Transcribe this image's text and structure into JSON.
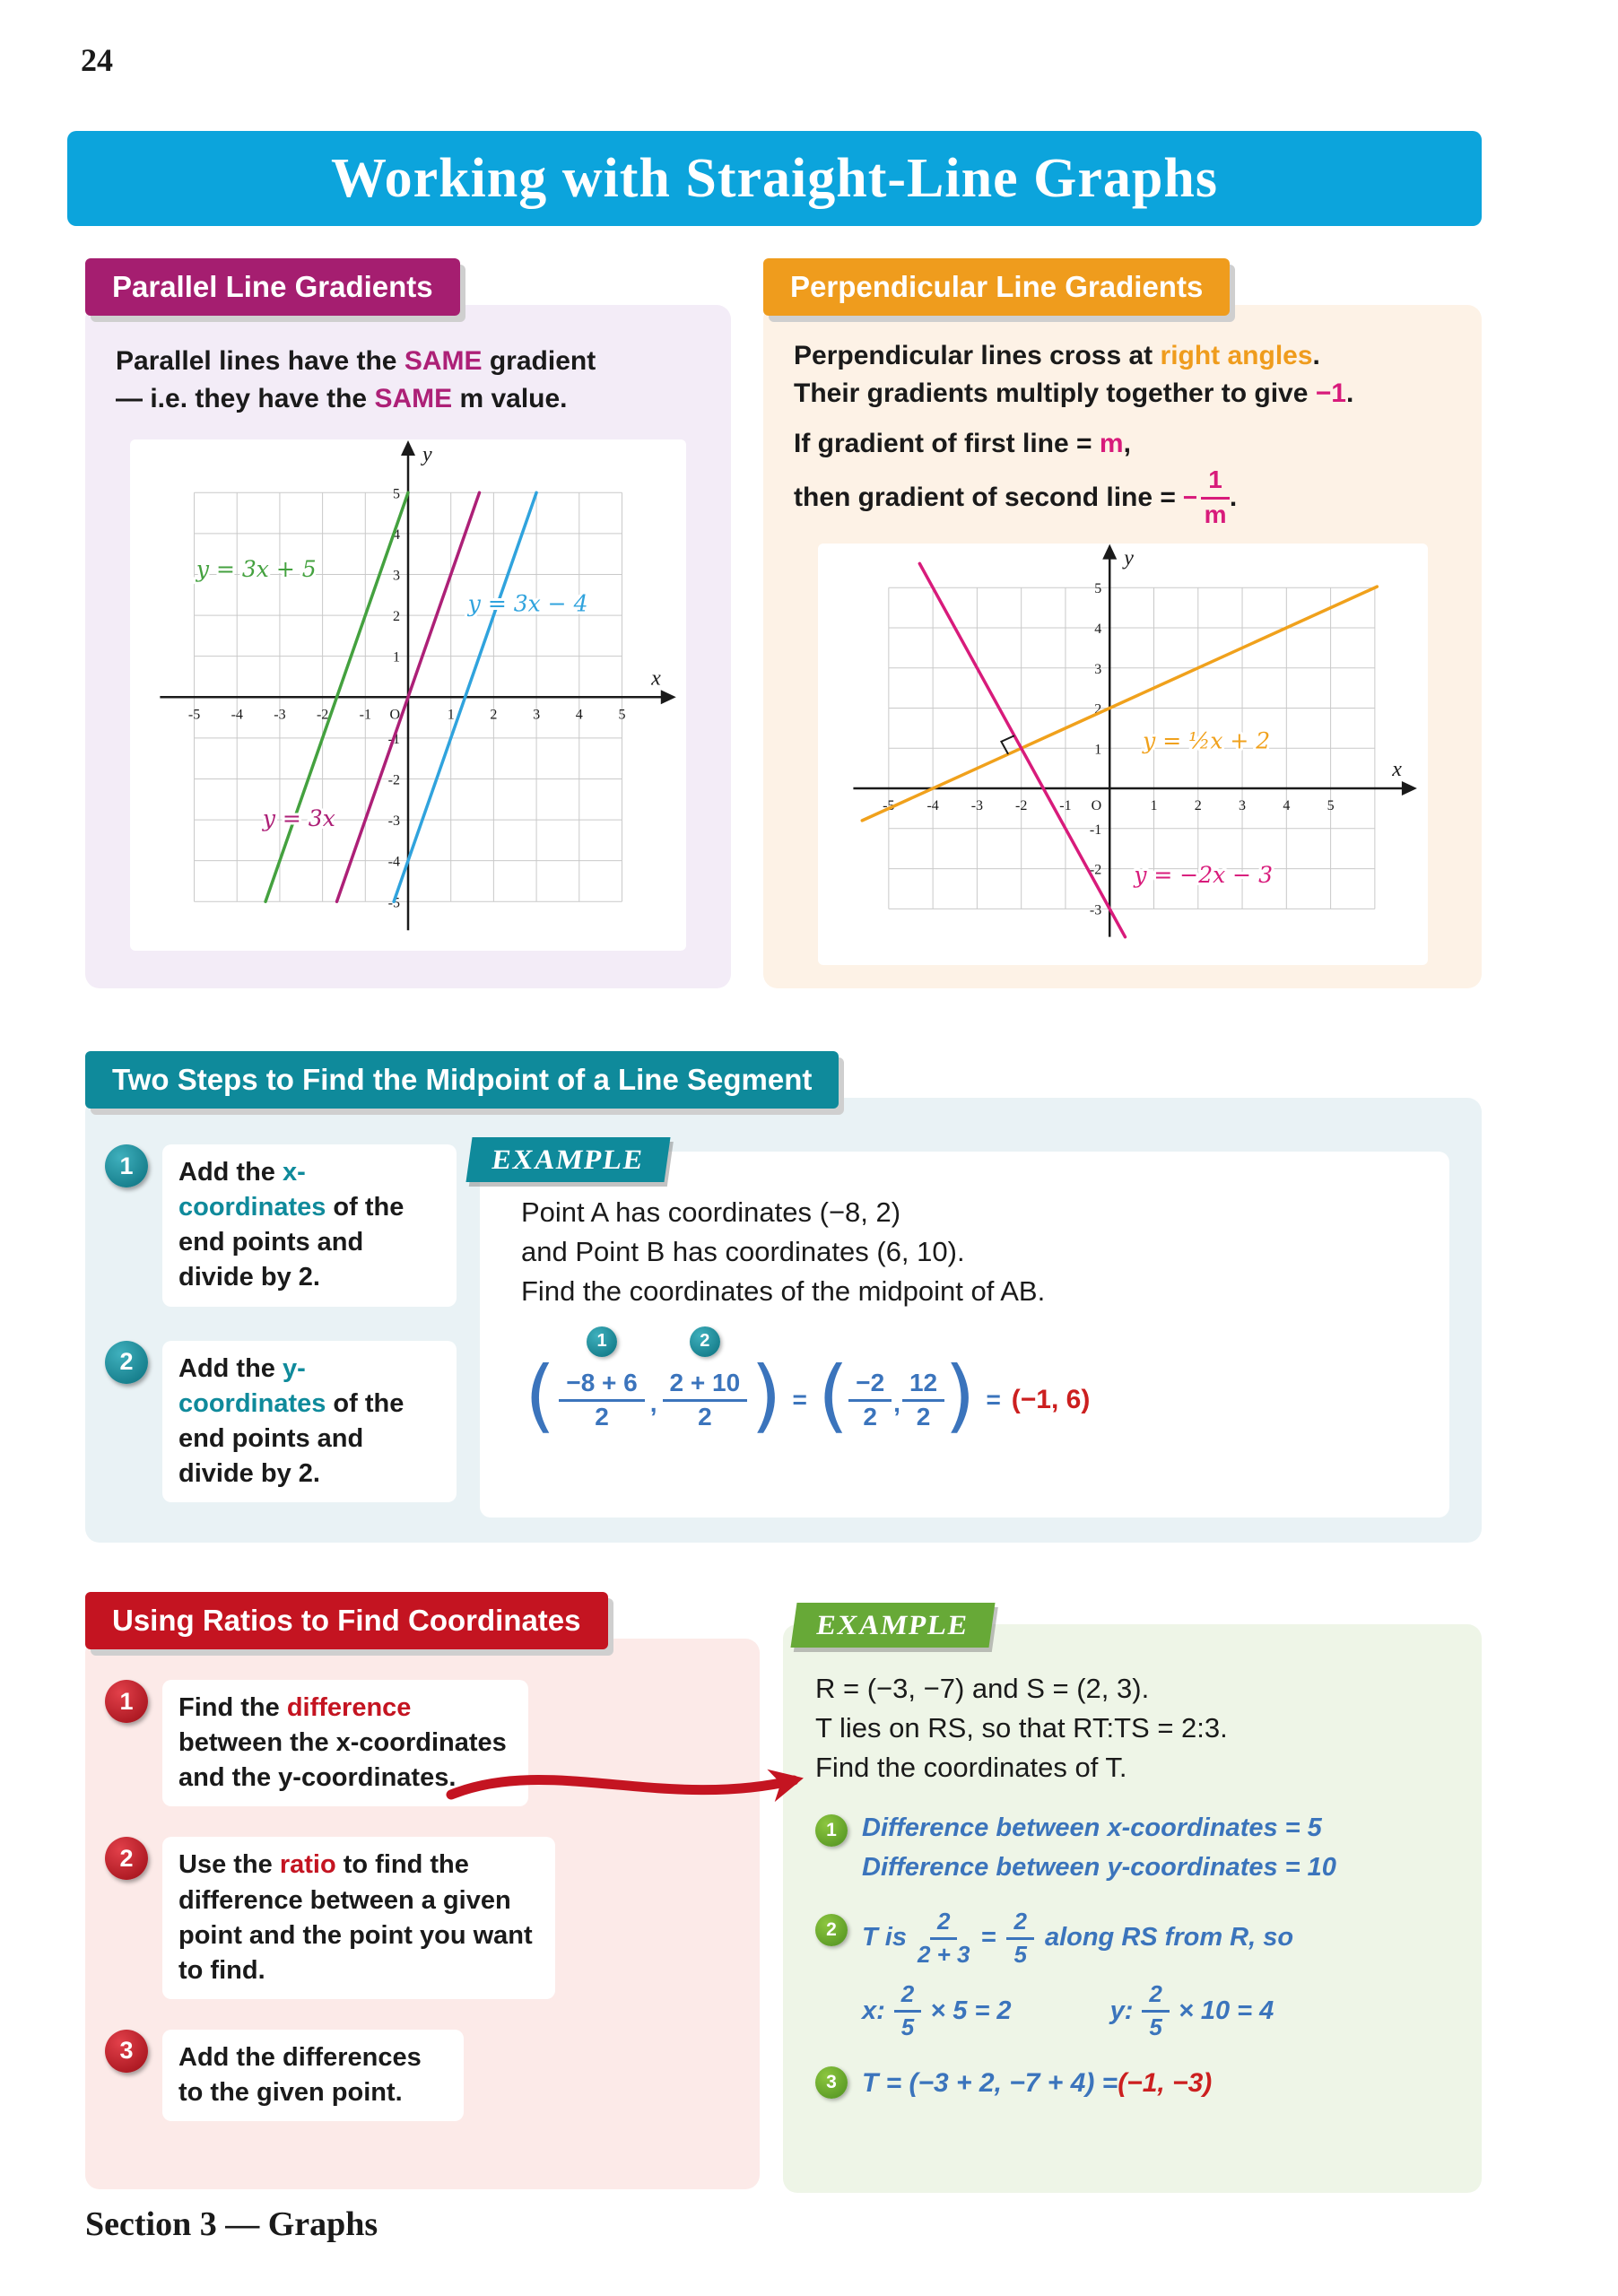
{
  "page": {
    "number": "24",
    "footer": "Section 3 — Graphs"
  },
  "title": "Working with Straight-Line Graphs",
  "colors": {
    "banner": "#0ca4dc",
    "magenta": "#a51e70",
    "orange": "#ef9c1d",
    "pink": "#d81b7b",
    "teal": "#0f8a9b",
    "red": "#c41421",
    "green": "#67a937",
    "math_blue": "#3b74bc",
    "result_red": "#cc1f1f"
  },
  "parallel": {
    "header": "Parallel Line Gradients",
    "line1": [
      {
        "t": "Parallel lines have the "
      },
      {
        "t": "SAME",
        "c": "magenta"
      },
      {
        "t": " gradient"
      }
    ],
    "line2": [
      {
        "t": "— i.e. they have the "
      },
      {
        "t": "SAME",
        "c": "magenta"
      },
      {
        "t": " m value."
      }
    ]
  },
  "perpendicular": {
    "header": "Perpendicular Line Gradients",
    "line1": [
      {
        "t": "Perpendicular lines cross at "
      },
      {
        "t": "right angles",
        "c": "orange"
      },
      {
        "t": "."
      }
    ],
    "line2": [
      {
        "t": "Their gradients multiply together to give "
      },
      {
        "t": "−1",
        "c": "pink"
      },
      {
        "t": "."
      }
    ],
    "line3": [
      {
        "t": "If gradient of first line = "
      },
      {
        "t": "m",
        "c": "pink"
      },
      {
        "t": ","
      }
    ],
    "line4_prefix": "then gradient of second line =",
    "fraction": {
      "sign": "−",
      "num": "1",
      "den": "m"
    },
    "line4_suffix": "."
  },
  "midpoint": {
    "header": "Two Steps to Find the Midpoint of a Line Segment",
    "steps": [
      {
        "num": "1",
        "segs": [
          {
            "t": "Add the "
          },
          {
            "t": "x-coordinates",
            "c": "teal"
          },
          {
            "t": " of the end points and divide by 2."
          }
        ]
      },
      {
        "num": "2",
        "segs": [
          {
            "t": "Add the "
          },
          {
            "t": "y-coordinates",
            "c": "teal"
          },
          {
            "t": " of the end points and divide by 2."
          }
        ]
      }
    ],
    "example": {
      "badge": "EXAMPLE",
      "lines": [
        "Point A has coordinates (−8, 2)",
        "and Point B has coordinates (6, 10).",
        "Find the coordinates of the midpoint of AB."
      ],
      "formula": {
        "circ1": "1",
        "circ2": "2",
        "open": "(",
        "f1": {
          "num": "−8 + 6",
          "den": "2"
        },
        "comma1": ",",
        "f2": {
          "num": "2 + 10",
          "den": "2"
        },
        "close": ")",
        "eq1": "=",
        "open2": "(",
        "f3": {
          "num": "−2",
          "den": "2"
        },
        "comma2": ",",
        "f4": {
          "num": "12",
          "den": "2"
        },
        "close2": ")",
        "eq2": "=",
        "result": "(−1, 6)"
      }
    }
  },
  "ratios": {
    "header": "Using Ratios to Find Coordinates",
    "steps": [
      {
        "num": "1",
        "segs": [
          {
            "t": "Find the "
          },
          {
            "t": "difference",
            "c": "red"
          },
          {
            "t": " between the x-coordinates and the y-coordinates."
          }
        ]
      },
      {
        "num": "2",
        "segs": [
          {
            "t": "Use the "
          },
          {
            "t": "ratio",
            "c": "red"
          },
          {
            "t": " to find the difference between a given point and the point you want to find."
          }
        ]
      },
      {
        "num": "3",
        "segs": [
          {
            "t": "Add the differences to the given point."
          }
        ]
      }
    ],
    "example": {
      "badge": "EXAMPLE",
      "intro": [
        "R = (−3, −7) and S = (2, 3).",
        "T lies on RS, so that RT:TS = 2:3.",
        "Find the coordinates of T."
      ],
      "s1": {
        "num": "1",
        "line1": "Difference between x-coordinates = 5",
        "line2": "Difference between y-coordinates = 10"
      },
      "s2": {
        "num": "2",
        "pre": "T is",
        "f1": {
          "num": "2",
          "den": "2 + 3"
        },
        "eq": "=",
        "f2": {
          "num": "2",
          "den": "5"
        },
        "post": "along RS from R, so",
        "x_label": "x:",
        "xf": {
          "num": "2",
          "den": "5"
        },
        "x_rest": "× 5 = 2",
        "y_label": "y:",
        "yf": {
          "num": "2",
          "den": "5"
        },
        "y_rest": "× 10 = 4"
      },
      "s3": {
        "num": "3",
        "pre": "T = (−3 + 2, −7 + 4) = ",
        "result": "(−1, −3)"
      }
    }
  },
  "chart_data": [
    {
      "type": "line",
      "title": "Parallel lines all with gradient 3",
      "xlabel": "x",
      "ylabel": "y",
      "origin_label": "O",
      "xlim": [
        -6.5,
        6.5
      ],
      "ylim": [
        -6.2,
        6.3
      ],
      "grid_x": [
        -5,
        5
      ],
      "grid_y": [
        -5,
        5
      ],
      "grid": true,
      "axis_x": [
        -5.8,
        5.95
      ],
      "axis_y": [
        -5.7,
        5.95
      ],
      "xticks": [
        -5,
        -4,
        -3,
        -2,
        -1,
        1,
        2,
        3,
        4,
        5
      ],
      "yticks": [
        -5,
        -4,
        -3,
        -2,
        -1,
        1,
        2,
        3,
        4,
        5
      ],
      "series": [
        {
          "name": "y = 3x + 5",
          "slope": 3,
          "intercept": 5,
          "color": "#44a13f",
          "points": [
            [
              -3.3333,
              -5
            ],
            [
              0,
              5
            ]
          ]
        },
        {
          "name": "y = 3x − 4",
          "slope": 3,
          "intercept": -4,
          "color": "#30a3dd",
          "points": [
            [
              -0.3333,
              -5
            ],
            [
              3,
              5
            ]
          ]
        },
        {
          "name": "y = 3x",
          "slope": 3,
          "intercept": 0,
          "color": "#ad2077",
          "points": [
            [
              -1.6667,
              -5
            ],
            [
              1.6667,
              5
            ]
          ]
        }
      ],
      "labels": [
        {
          "text": "y = 3x + 5",
          "x": -4.95,
          "y": 2.95,
          "color": "#44a13f"
        },
        {
          "text": "y = 3x − 4",
          "x": 1.4,
          "y": 2.1,
          "color": "#30a3dd"
        },
        {
          "text": "y = 3x",
          "x": -3.4,
          "y": -3.15,
          "color": "#ad2077"
        }
      ]
    },
    {
      "type": "line",
      "title": "Perpendicular lines with gradients ½ and −2",
      "xlabel": "x",
      "ylabel": "y",
      "origin_label": "O",
      "xlim": [
        -6.6,
        7.2
      ],
      "ylim": [
        -4.4,
        6.1
      ],
      "grid_x": [
        -5,
        6
      ],
      "grid_y": [
        -3,
        5
      ],
      "grid": true,
      "axis_x": [
        -5.8,
        6.65
      ],
      "axis_y": [
        -3.7,
        5.75
      ],
      "xticks": [
        -5,
        -4,
        -3,
        -2,
        -1,
        1,
        2,
        3,
        4,
        5
      ],
      "yticks": [
        -3,
        -2,
        -1,
        1,
        2,
        3,
        4,
        5
      ],
      "series": [
        {
          "name": "y = ½x + 2",
          "slope": 0.5,
          "intercept": 2,
          "color": "#f0a11c",
          "points": [
            [
              -5.6,
              -0.8
            ],
            [
              6.05,
              5.025
            ]
          ]
        },
        {
          "name": "y = −2x − 3",
          "slope": -2,
          "intercept": -3,
          "color": "#d81b7b",
          "points": [
            [
              -4.3,
              5.6
            ],
            [
              0.35,
              -3.7
            ]
          ]
        }
      ],
      "labels": [
        {
          "text": "y = ½x + 2",
          "x": 0.75,
          "y": 1.0,
          "color": "#f0a11c"
        },
        {
          "text": "y = −2x − 3",
          "x": 0.55,
          "y": -2.35,
          "color": "#d81b7b"
        }
      ],
      "right_angle": [
        -2,
        1
      ]
    }
  ]
}
